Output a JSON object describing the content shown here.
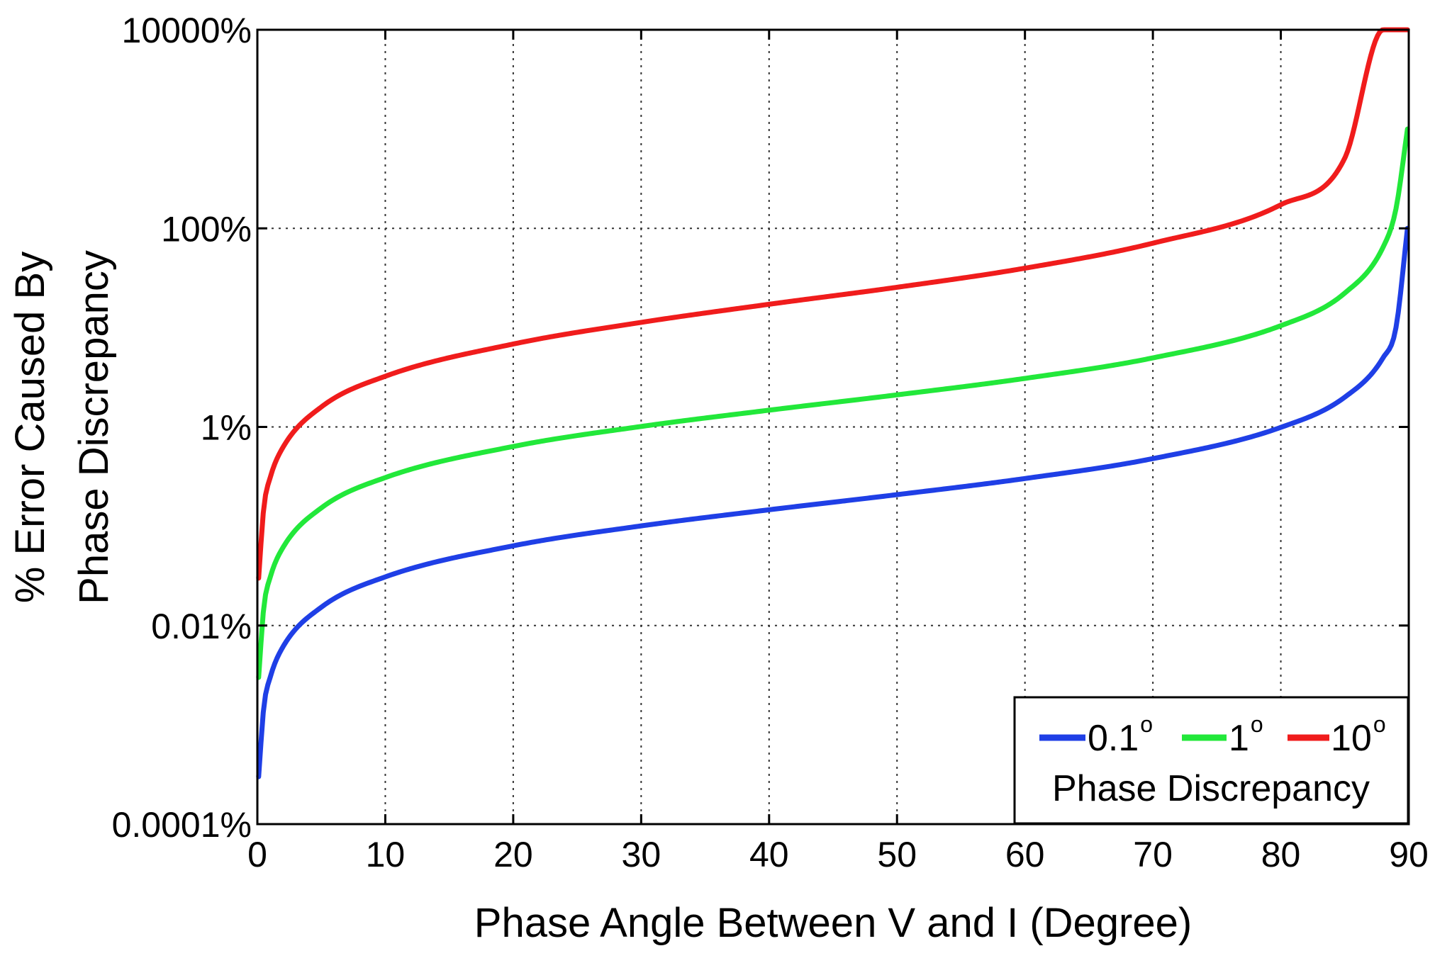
{
  "chart_data": {
    "type": "line",
    "title": "",
    "xlabel": "Phase Angle Between V and I (Degree)",
    "ylabel_line1": "% Error Caused By",
    "ylabel_line2": "Phase Discrepancy",
    "xlim": [
      0,
      90
    ],
    "ylim": [
      0.0001,
      10000
    ],
    "yscale": "log",
    "grid": true,
    "x_ticks": [
      0,
      10,
      20,
      30,
      40,
      50,
      60,
      70,
      80,
      90
    ],
    "x_tick_labels": [
      "0",
      "10",
      "20",
      "30",
      "40",
      "50",
      "60",
      "70",
      "80",
      "90"
    ],
    "y_ticks": [
      0.0001,
      0.01,
      1,
      100,
      10000
    ],
    "y_tick_labels": [
      "0.0001%",
      "0.01%",
      "1%",
      "100%",
      "10000%"
    ],
    "legend": {
      "position": "bottom-right",
      "title": "Phase Discrepancy",
      "degree_symbol": "o"
    },
    "x": [
      0.1,
      0.5,
      1,
      2,
      5,
      10,
      20,
      30,
      40,
      50,
      60,
      70,
      80,
      85,
      88,
      89,
      89.9
    ],
    "series": [
      {
        "name": "0.1",
        "color": "#1f3fe6",
        "values": [
          0.0003,
          0.0015,
          0.003,
          0.0061,
          0.0153,
          0.0309,
          0.0635,
          0.1008,
          0.1465,
          0.208,
          0.3023,
          0.4796,
          0.9901,
          1.995,
          4.994,
          9.983,
          100.0
        ]
      },
      {
        "name": "1",
        "color": "#22e83a",
        "values": [
          0.003,
          0.0152,
          0.0305,
          0.061,
          0.153,
          0.309,
          0.636,
          1.011,
          1.475,
          2.104,
          3.082,
          4.96,
          10.46,
          22.3,
          64.9,
          157.0,
          1000
        ]
      },
      {
        "name": "10",
        "color": "#f01c1c",
        "values": [
          0.03,
          0.153,
          0.308,
          0.623,
          1.59,
          3.24,
          6.84,
          11.3,
          17.2,
          25.5,
          39.7,
          70.9,
          173,
          510,
          10000,
          10000,
          10000
        ]
      }
    ]
  }
}
